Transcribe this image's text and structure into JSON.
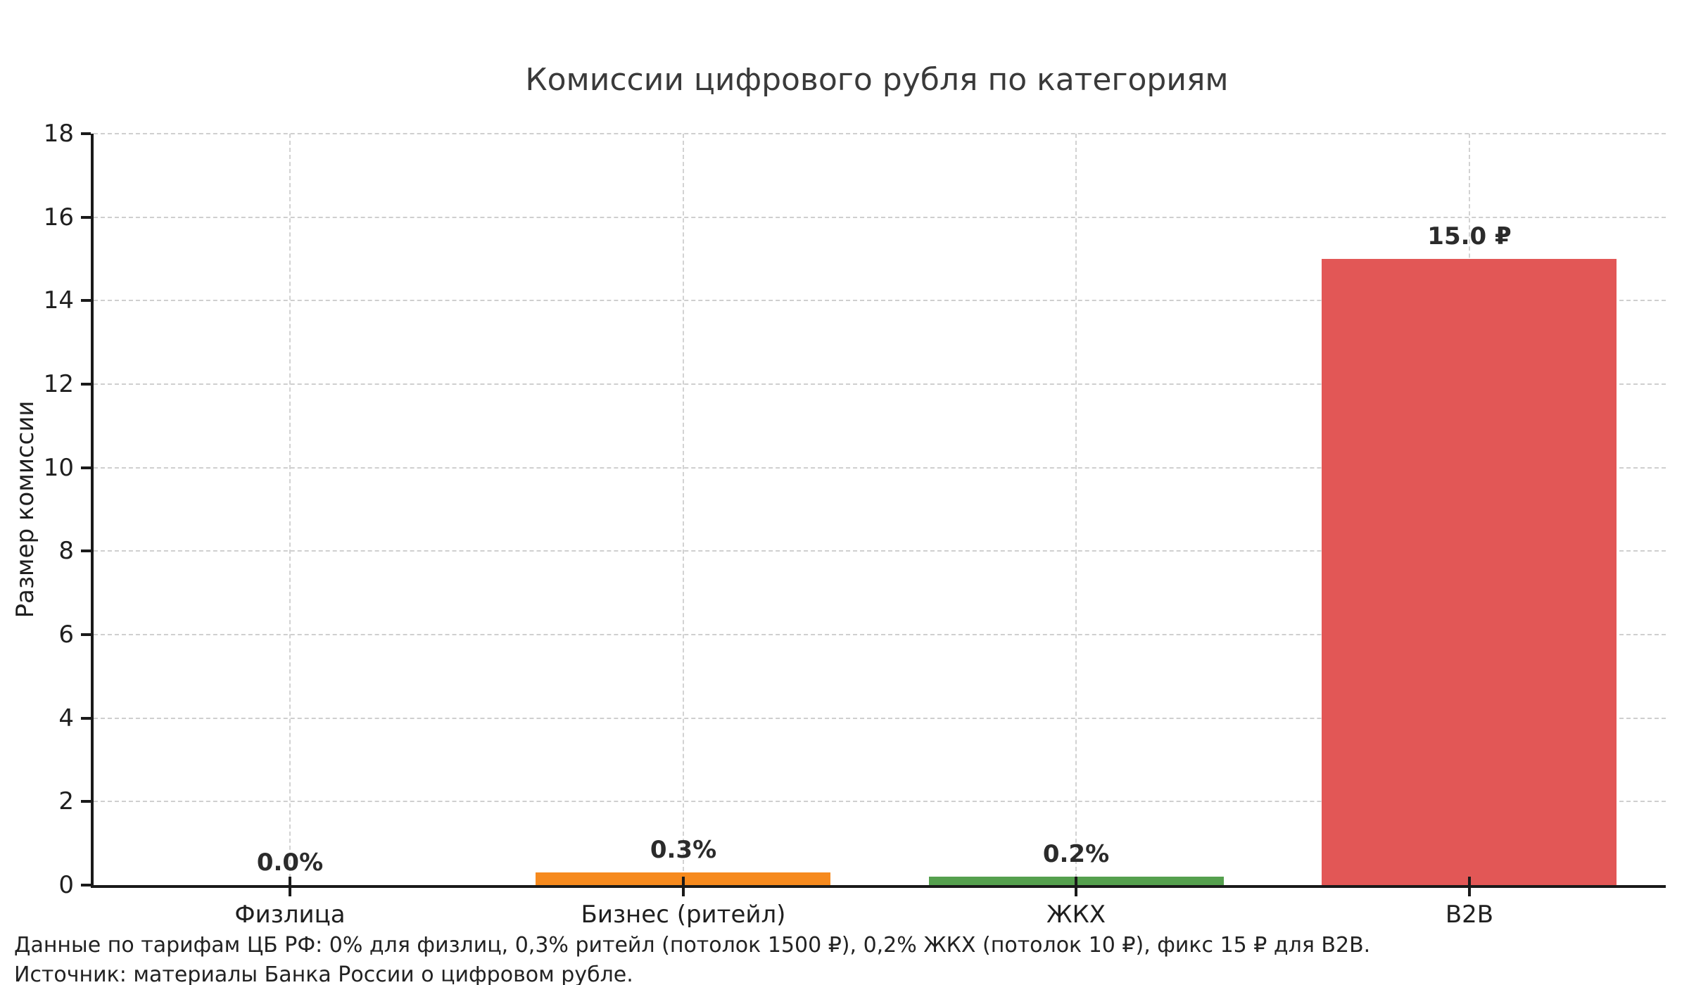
{
  "title": "Комиссии цифрового рубля по категориям",
  "chart_data": {
    "type": "bar",
    "title": "Комиссии цифрового рубля по категориям",
    "categories": [
      "Физлица",
      "Бизнес (ритейл)",
      "ЖКХ",
      "B2B"
    ],
    "values": [
      0.0,
      0.3,
      0.2,
      15.0
    ],
    "bar_labels": [
      "0.0%",
      "0.3%",
      "0.2%",
      "15.0 ₽"
    ],
    "bar_colors": [
      null,
      "#f68a1e",
      "#55a04e",
      "#e25756"
    ],
    "xlabel": "",
    "ylabel": "Размер комиссии",
    "ylim": [
      0,
      18
    ],
    "yticks": [
      0,
      2,
      4,
      6,
      8,
      10,
      12,
      14,
      16,
      18
    ],
    "grid": "dashed gray, horizontal and vertical",
    "legend": "none"
  },
  "footnotes": [
    "Данные по тарифам ЦБ РФ: 0% для физлиц, 0,3% ритейл (потолок 1500 ₽), 0,2% ЖКХ (потолок 10 ₽), фикс 15 ₽ для B2B.",
    "Источник: материалы Банка России о цифровом рубле."
  ],
  "style": {
    "grid_color": "#cfcfcf",
    "axis_color": "#1a1a1a",
    "title_color": "#3a3a3a",
    "tick_label_color": "#1f1f1f",
    "value_label_color": "#2b2b2b",
    "background": "#ffffff"
  }
}
